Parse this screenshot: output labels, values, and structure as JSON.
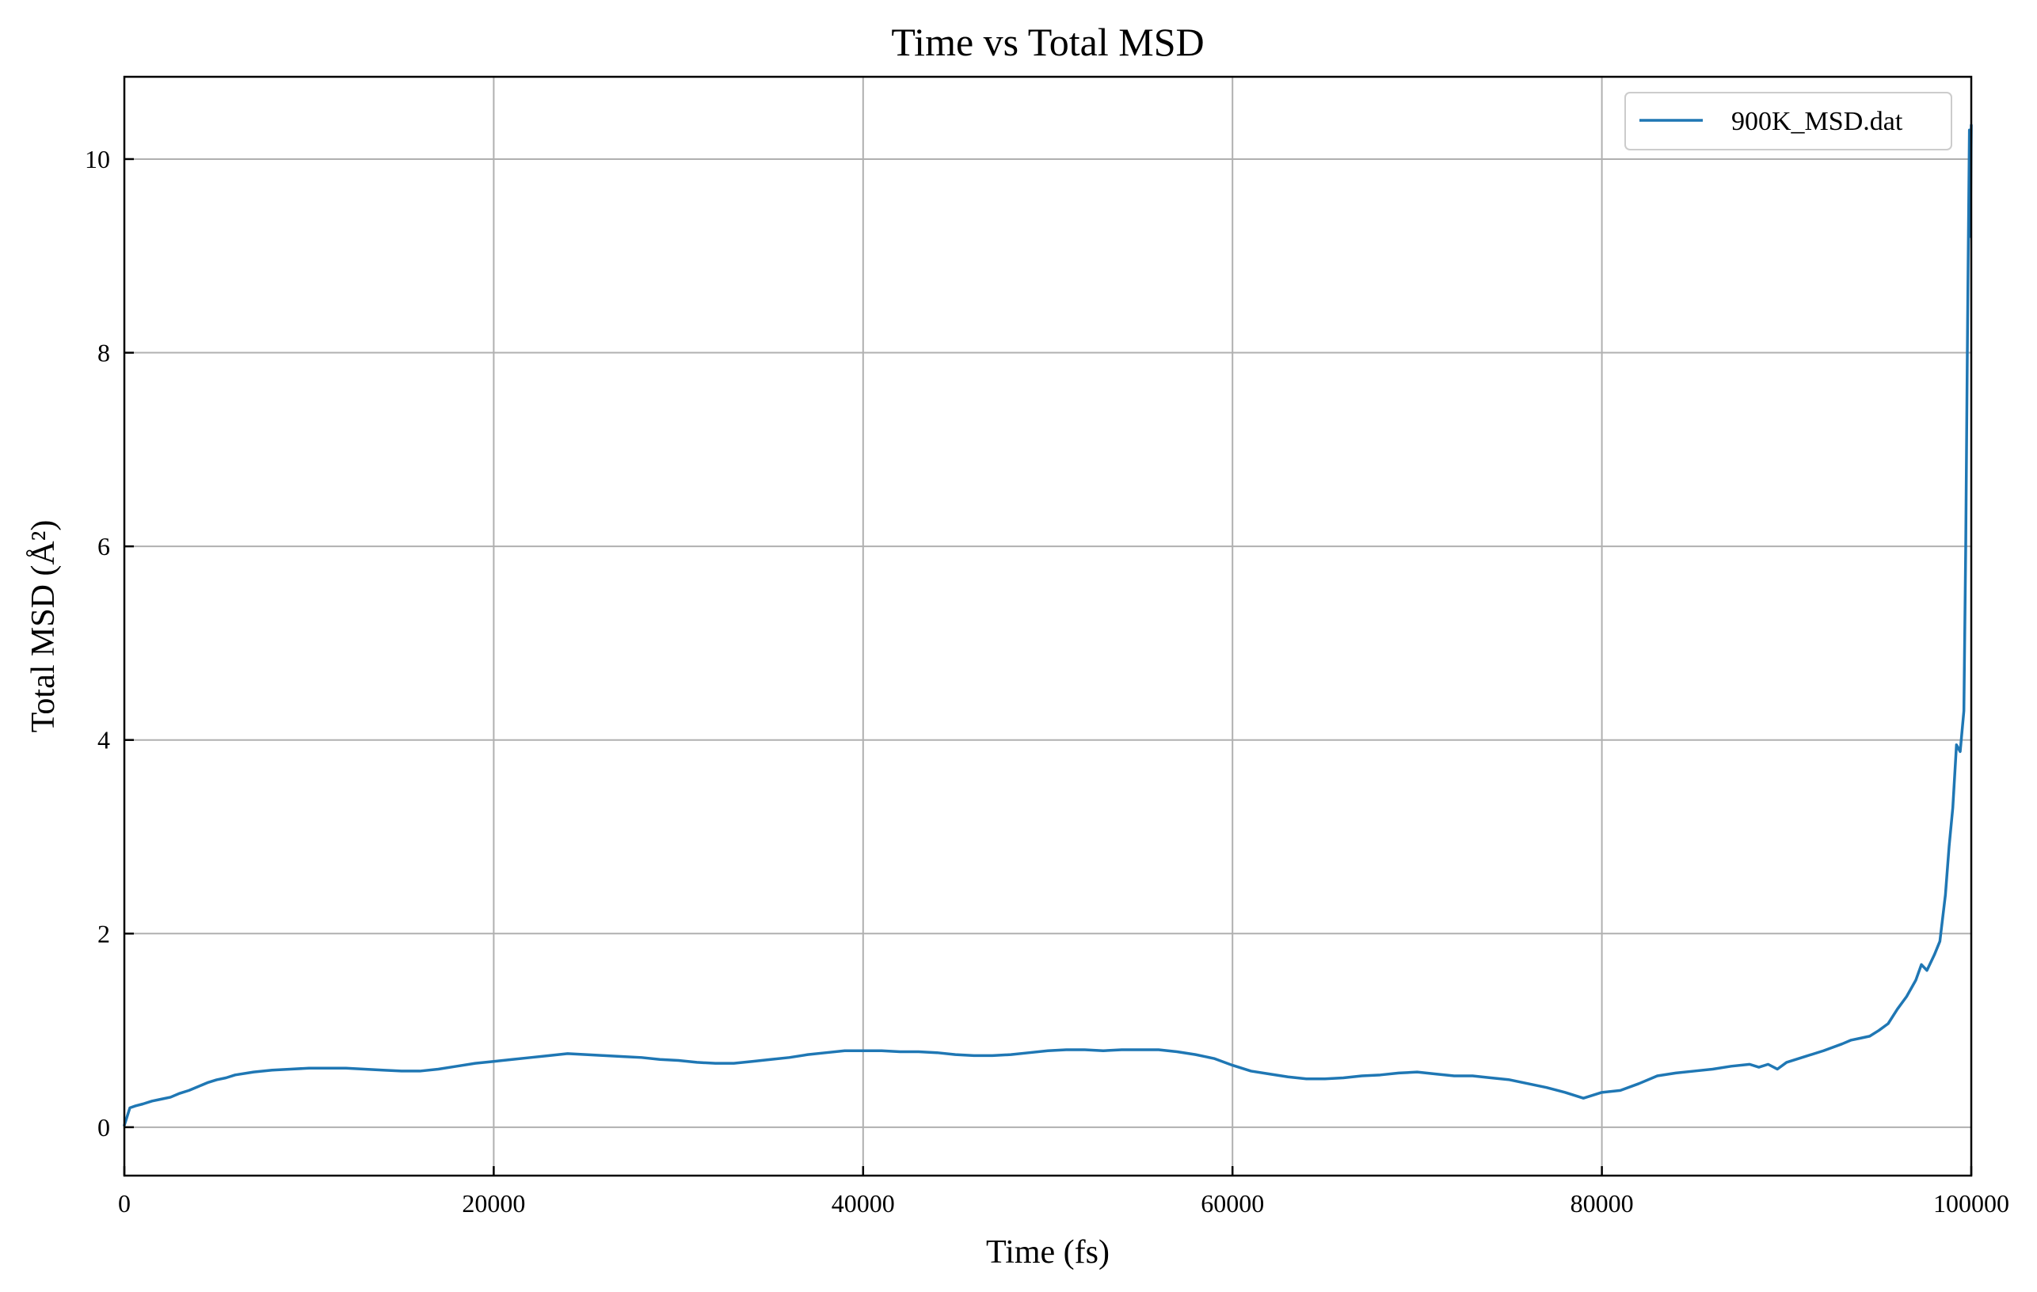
{
  "chart_data": {
    "type": "line",
    "title": "Time vs Total MSD",
    "xlabel": "Time (fs)",
    "ylabel": "Total MSD (Å²)",
    "xlim": [
      0,
      100000
    ],
    "ylim": [
      -0.5,
      10.85
    ],
    "x_ticks": [
      0,
      20000,
      40000,
      60000,
      80000,
      100000
    ],
    "y_ticks": [
      0,
      2,
      4,
      6,
      8,
      10
    ],
    "x_tick_labels": [
      "0",
      "20000",
      "40000",
      "60000",
      "80000",
      "100000"
    ],
    "y_tick_labels": [
      "0",
      "2",
      "4",
      "6",
      "8",
      "10"
    ],
    "grid": true,
    "legend_position": "top-right",
    "colors": {
      "series": "#1f77b4",
      "grid": "#b0b0b0",
      "axes": "#000000"
    },
    "series": [
      {
        "name": "900K_MSD.dat",
        "x": [
          0,
          300,
          600,
          1000,
          1500,
          2000,
          2500,
          3000,
          3500,
          4000,
          4500,
          5000,
          5500,
          6000,
          7000,
          8000,
          9000,
          10000,
          11000,
          12000,
          13000,
          14000,
          15000,
          16000,
          17000,
          18000,
          19000,
          20000,
          21000,
          22000,
          23000,
          24000,
          25000,
          26000,
          27000,
          28000,
          29000,
          30000,
          31000,
          32000,
          33000,
          34000,
          35000,
          36000,
          37000,
          38000,
          39000,
          40000,
          41000,
          42000,
          43000,
          44000,
          45000,
          46000,
          47000,
          48000,
          49000,
          50000,
          51000,
          52000,
          53000,
          54000,
          55000,
          56000,
          57000,
          58000,
          59000,
          60000,
          61000,
          62000,
          63000,
          64000,
          65000,
          66000,
          67000,
          68000,
          69000,
          70000,
          71000,
          72000,
          73000,
          74000,
          75000,
          76000,
          77000,
          78000,
          79000,
          80000,
          81000,
          82000,
          83000,
          84000,
          85000,
          86000,
          87000,
          88000,
          88500,
          89000,
          89500,
          90000,
          91000,
          92000,
          93000,
          93500,
          94000,
          94500,
          95000,
          95500,
          96000,
          96500,
          97000,
          97300,
          97600,
          98000,
          98300,
          98600,
          98800,
          99000,
          99200,
          99400,
          99600,
          99700,
          99800,
          99900,
          99950,
          100000
        ],
        "values": [
          0.02,
          0.2,
          0.22,
          0.24,
          0.27,
          0.29,
          0.31,
          0.35,
          0.38,
          0.42,
          0.46,
          0.49,
          0.51,
          0.54,
          0.57,
          0.59,
          0.6,
          0.61,
          0.61,
          0.61,
          0.6,
          0.59,
          0.58,
          0.58,
          0.6,
          0.63,
          0.66,
          0.68,
          0.7,
          0.72,
          0.74,
          0.76,
          0.75,
          0.74,
          0.73,
          0.72,
          0.7,
          0.69,
          0.67,
          0.66,
          0.66,
          0.68,
          0.7,
          0.72,
          0.75,
          0.77,
          0.79,
          0.79,
          0.79,
          0.78,
          0.78,
          0.77,
          0.75,
          0.74,
          0.74,
          0.75,
          0.77,
          0.79,
          0.8,
          0.8,
          0.79,
          0.8,
          0.8,
          0.8,
          0.78,
          0.75,
          0.71,
          0.64,
          0.58,
          0.55,
          0.52,
          0.5,
          0.5,
          0.51,
          0.53,
          0.54,
          0.56,
          0.57,
          0.55,
          0.53,
          0.53,
          0.51,
          0.49,
          0.45,
          0.41,
          0.36,
          0.3,
          0.36,
          0.38,
          0.45,
          0.53,
          0.56,
          0.58,
          0.6,
          0.63,
          0.65,
          0.62,
          0.65,
          0.6,
          0.67,
          0.73,
          0.79,
          0.86,
          0.9,
          0.92,
          0.94,
          1.0,
          1.07,
          1.22,
          1.35,
          1.52,
          1.68,
          1.62,
          1.78,
          1.92,
          2.4,
          2.9,
          3.3,
          3.95,
          3.88,
          4.3,
          6.0,
          8.3,
          10.3,
          9.2,
          10.35
        ]
      }
    ]
  }
}
